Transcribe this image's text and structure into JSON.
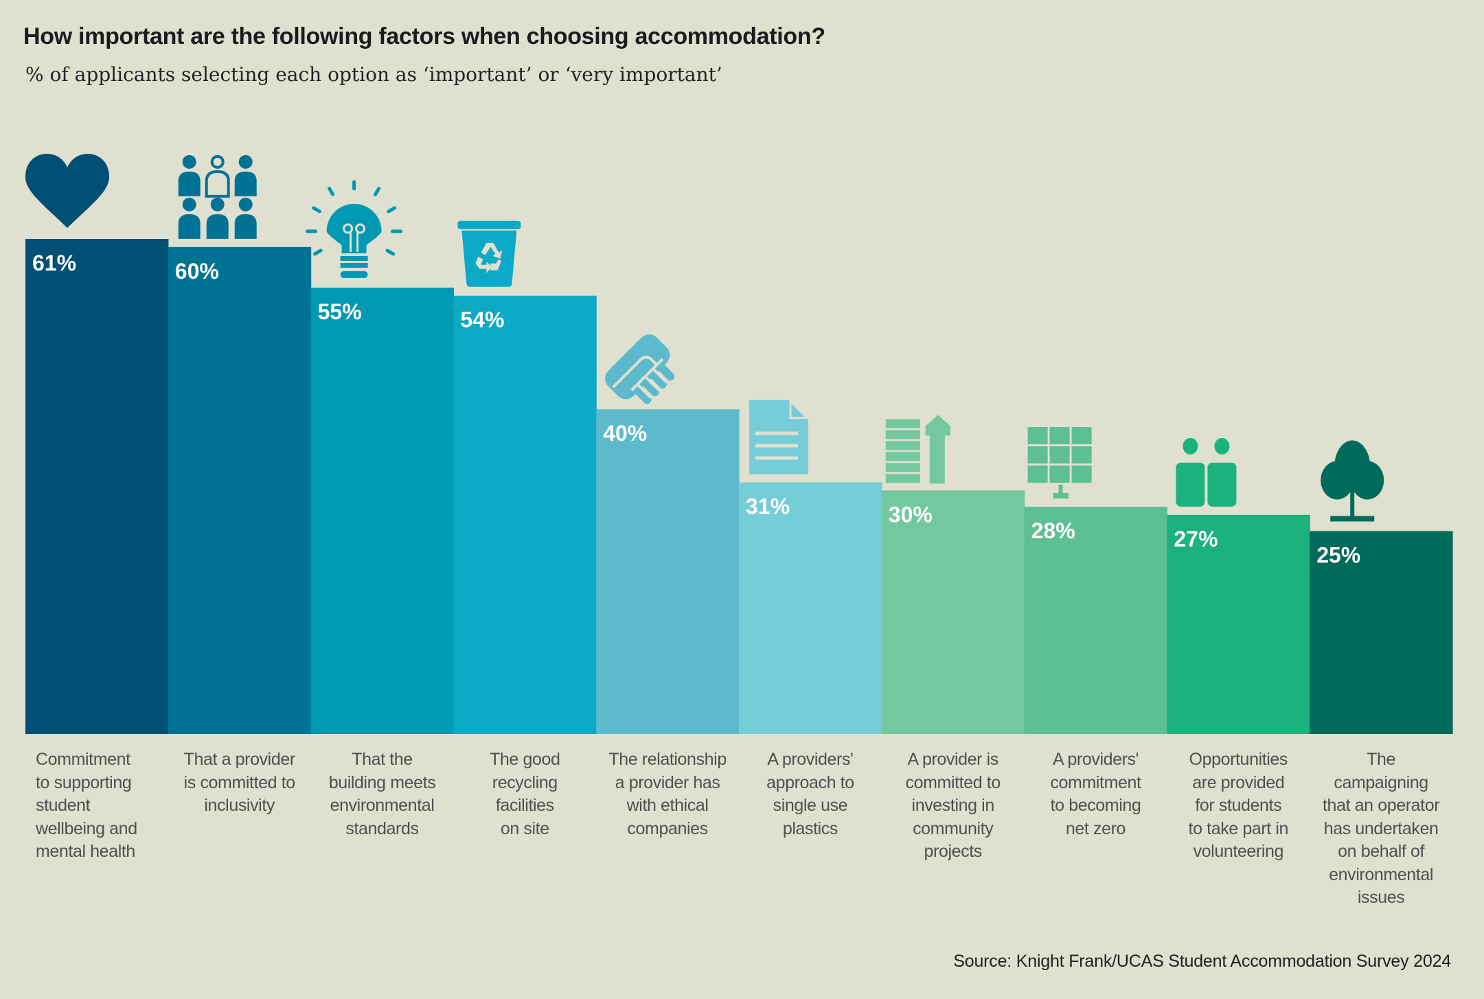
{
  "chart_data": {
    "type": "bar",
    "title": "How important are the following factors when choosing accommodation?",
    "subtitle": "% of applicants selecting each option as ‘important’ or ‘very important’",
    "xlabel": "",
    "ylabel": "",
    "ylim": [
      0,
      61
    ],
    "grid": false,
    "legend": "none",
    "value_suffix": "%",
    "categories": [
      "Commitment to supporting student wellbeing and mental health",
      "That a provider is committed to inclusivity",
      "That the building meets environmental standards",
      "The good recycling facilities on site",
      "The relationship a provider has with ethical companies",
      "A providers' approach to single use plastics",
      "A provider is committed to investing in community projects",
      "A providers' commitment to becoming net zero",
      "Opportunities are provided for students to take part in volunteering",
      "The campaigning that an operator has undertaken on behalf of environmental issues"
    ],
    "category_lines": [
      [
        "Commitment",
        "to supporting",
        "student",
        "wellbeing and",
        "mental health"
      ],
      [
        "That a provider",
        "is committed to",
        "inclusivity"
      ],
      [
        "That the",
        "building meets",
        "environmental",
        "standards"
      ],
      [
        "The good",
        "recycling",
        "facilities",
        "on site"
      ],
      [
        "The relationship",
        "a provider has",
        "with ethical",
        "companies"
      ],
      [
        "A providers'",
        "approach to",
        "single use",
        "plastics"
      ],
      [
        "A provider is",
        "committed to",
        "investing in",
        "community",
        "projects"
      ],
      [
        "A providers'",
        "commitment",
        "to becoming",
        "net zero"
      ],
      [
        "Opportunities",
        "are provided",
        "for students",
        "to take part in",
        "volunteering"
      ],
      [
        "The",
        "campaigning",
        "that an operator",
        "has undertaken",
        "on behalf of",
        "environmental",
        "issues"
      ]
    ],
    "values": [
      61,
      60,
      55,
      54,
      40,
      31,
      30,
      28,
      27,
      25
    ],
    "data_labels": [
      "61%",
      "60%",
      "55%",
      "54%",
      "40%",
      "31%",
      "30%",
      "28%",
      "27%",
      "25%"
    ],
    "colors": [
      "#004F74",
      "#007395",
      "#0099B3",
      "#0AA9C5",
      "#5DBACC",
      "#76CDD8",
      "#73C8A0",
      "#5DBF94",
      "#1BB27E",
      "#006B5A"
    ],
    "icons": [
      "heart-icon",
      "people-group-icon",
      "lightbulb-icon",
      "recycling-bin-icon",
      "handshake-icon",
      "document-icon",
      "growth-arrow-icon",
      "solar-panel-icon",
      "volunteers-icon",
      "tree-icon"
    ],
    "source": "Source: Knight Frank/UCAS Student Accommodation Survey 2024"
  }
}
